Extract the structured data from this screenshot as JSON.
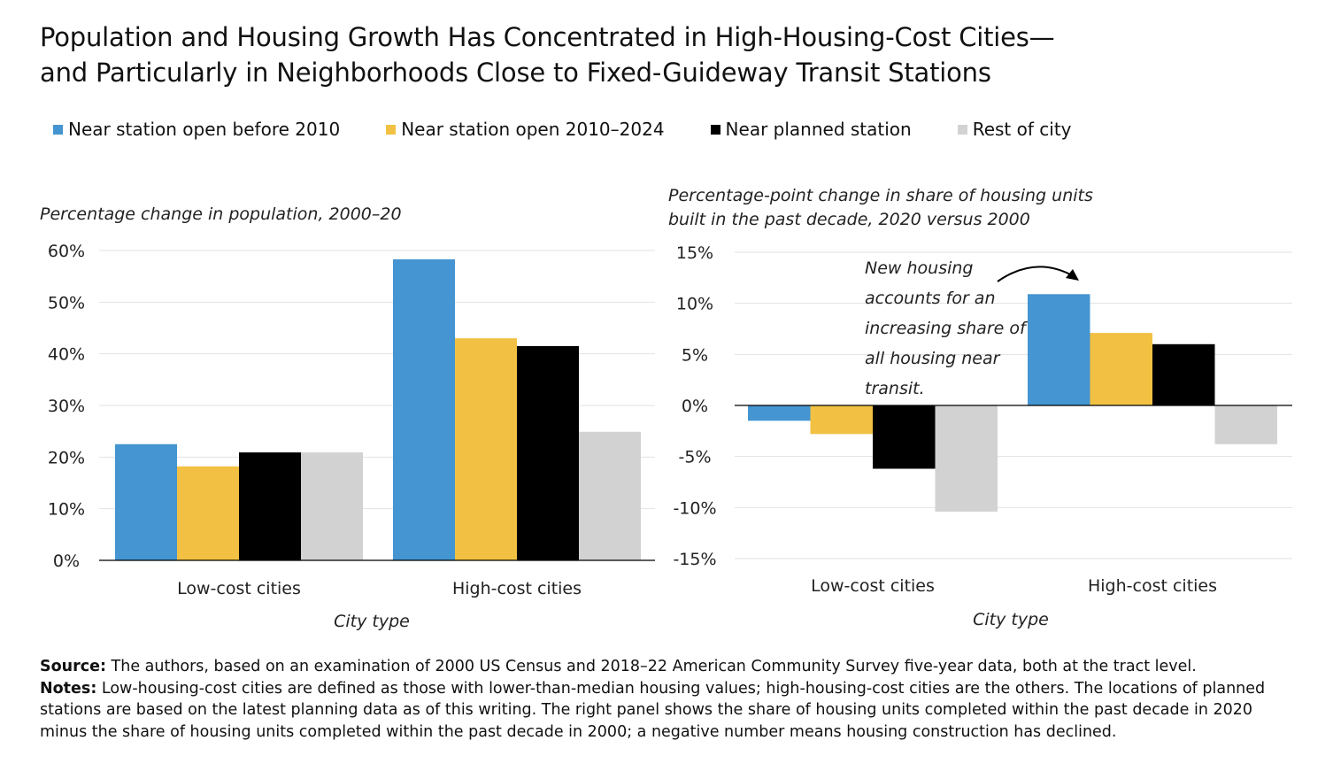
{
  "title_line1": "Population and Housing Growth Has Concentrated in High-Housing-Cost Cities—",
  "title_line2": "and Particularly in Neighborhoods Close to Fixed-Guideway Transit Stations",
  "legend": [
    {
      "label": "Near station open before 2010",
      "color": "#4495d1"
    },
    {
      "label": "Near station open 2010–2024",
      "color": "#f2c143"
    },
    {
      "label": "Near planned station",
      "color": "#000000"
    },
    {
      "label": "Rest of city",
      "color": "#d2d2d2"
    }
  ],
  "chart_data": [
    {
      "type": "bar",
      "subtitle": "Percentage change in population, 2000–20",
      "xlabel": "City type",
      "categories": [
        "Low-cost cities",
        "High-cost cities"
      ],
      "ylim": [
        0,
        60
      ],
      "yticks": [
        "0%",
        "10%",
        "20%",
        "30%",
        "40%",
        "50%",
        "60%"
      ],
      "grid": true,
      "series": [
        {
          "name": "Near station open before 2010",
          "values": [
            22.5,
            58.3
          ]
        },
        {
          "name": "Near station open 2010–2024",
          "values": [
            18.2,
            43.0
          ]
        },
        {
          "name": "Near planned station",
          "values": [
            20.9,
            41.5
          ]
        },
        {
          "name": "Rest of city",
          "values": [
            20.9,
            24.9
          ]
        }
      ]
    },
    {
      "type": "bar",
      "subtitle_line1": "Percentage-point change in share of housing units",
      "subtitle_line2": "built in the past decade, 2020 versus 2000",
      "xlabel": "City type",
      "categories": [
        "Low-cost cities",
        "High-cost cities"
      ],
      "ylim": [
        -15,
        15
      ],
      "yticks": [
        "-15%",
        "-10%",
        "-5%",
        "0%",
        "5%",
        "10%",
        "15%"
      ],
      "grid": true,
      "annotation": [
        "New housing",
        "accounts for an",
        "increasing share of",
        "all housing near",
        "transit."
      ],
      "series": [
        {
          "name": "Near station open before 2010",
          "values": [
            -1.5,
            10.9
          ]
        },
        {
          "name": "Near station open 2010–2024",
          "values": [
            -2.8,
            7.1
          ]
        },
        {
          "name": "Near planned station",
          "values": [
            -6.2,
            6.0
          ]
        },
        {
          "name": "Rest of city",
          "values": [
            -10.4,
            -3.8
          ]
        }
      ]
    }
  ],
  "source_label": "Source:",
  "source_text": " The authors, based on an examination of 2000 US Census and 2018–22 American Community Survey five-year data, both at the tract level.",
  "notes_label": "Notes:",
  "notes_text": " Low-housing-cost cities are defined as those with lower-than-median housing values; high-housing-cost cities are the others. The locations of planned stations are based on the latest planning data as of this writing. The right panel shows the share of housing units completed within the past decade in 2020 minus the share of housing units completed within the past decade in 2000; a negative number means housing construction has declined."
}
